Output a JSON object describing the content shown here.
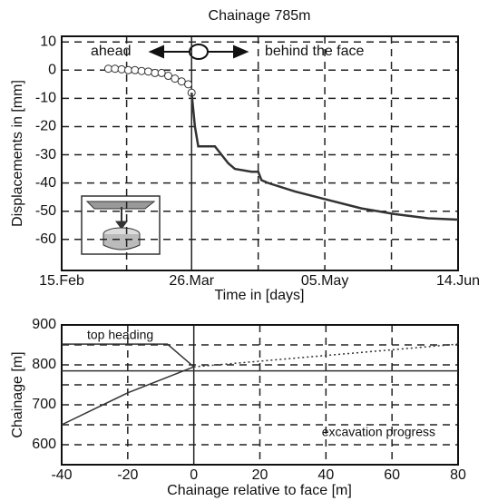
{
  "chart_data": [
    {
      "type": "line",
      "title": "Chainage 785m",
      "ylabel": "Displacements in [mm]",
      "xlabel": "Time in [days]",
      "xlim": [
        0,
        119
      ],
      "ylim": [
        -71,
        12
      ],
      "xticks": [
        {
          "value": 0,
          "label": "15.Feb"
        },
        {
          "value": 39,
          "label": "26.Mar"
        },
        {
          "value": 79,
          "label": "05.May"
        },
        {
          "value": 119,
          "label": "14.Jun"
        }
      ],
      "yticks": [
        10,
        0,
        -10,
        -20,
        -30,
        -40,
        -50,
        -60
      ],
      "grid": true,
      "minor_grid": true,
      "annotations": [
        "ahead",
        "behind  the face"
      ],
      "series": [
        {
          "color": "#333333",
          "marker": "circle",
          "x": [
            14,
            16,
            18,
            20,
            22,
            24,
            26,
            28,
            30,
            32,
            34,
            36,
            38,
            39
          ],
          "values": [
            0.5,
            0.5,
            0.3,
            0,
            0,
            -0.3,
            -0.5,
            -1,
            -1,
            -2,
            -3,
            -4,
            -5,
            -8
          ]
        },
        {
          "color": "#333333",
          "marker": "none",
          "x": [
            39,
            40,
            41,
            43,
            46,
            50,
            52,
            57,
            59,
            60,
            62,
            70,
            80,
            90,
            100,
            110,
            119
          ],
          "values": [
            -8,
            -20,
            -27,
            -27,
            -27,
            -33,
            -35,
            -36,
            -36,
            -39,
            -40,
            -43,
            -46,
            -49,
            -51,
            -52.5,
            -53
          ]
        }
      ]
    },
    {
      "type": "line",
      "ylabel": "Chainage [m]",
      "xlabel": "Chainage relative to face [m]",
      "xlim": [
        -40,
        80
      ],
      "ylim": [
        550,
        900
      ],
      "xticks": [
        -40,
        -20,
        0,
        20,
        40,
        60,
        80
      ],
      "yticks": [
        900,
        800,
        700,
        600
      ],
      "grid": true,
      "minor_grid": true,
      "annotations": [
        "top heading",
        "excavation progress"
      ],
      "series": [
        {
          "color": "#333333",
          "style": "solid",
          "x": [
            -40,
            -8,
            0
          ],
          "values": [
            852,
            852,
            795
          ]
        },
        {
          "color": "#333333",
          "style": "solid",
          "x": [
            -40,
            -20,
            0
          ],
          "values": [
            650,
            730,
            795
          ]
        },
        {
          "color": "#333333",
          "style": "dotted",
          "x": [
            0,
            80
          ],
          "values": [
            795,
            852
          ]
        },
        {
          "color": "#333333",
          "style": "solid",
          "x": [
            -40,
            80
          ],
          "values": [
            785,
            785
          ]
        }
      ]
    }
  ]
}
